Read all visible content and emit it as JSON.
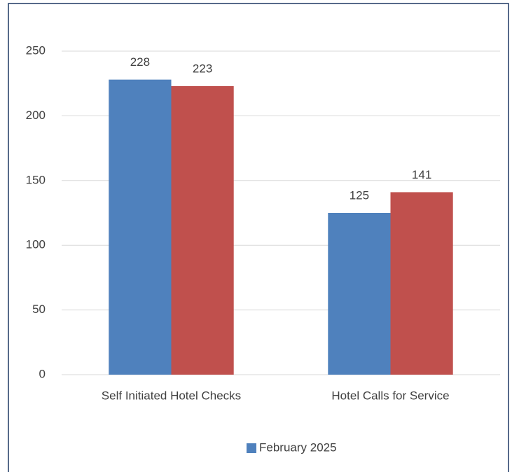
{
  "chart_data": {
    "type": "bar",
    "categories": [
      "Self Initiated Hotel Checks",
      "Hotel Calls for Service"
    ],
    "series": [
      {
        "name": "February 2025",
        "color": "#4f81bd",
        "values": [
          228,
          125
        ]
      },
      {
        "color": "#c0504d",
        "values": [
          223,
          141
        ]
      }
    ],
    "ylim": [
      0,
      250
    ],
    "yticks": [
      0,
      50,
      100,
      150,
      200,
      250
    ],
    "grid": true,
    "legend": "bottom"
  }
}
